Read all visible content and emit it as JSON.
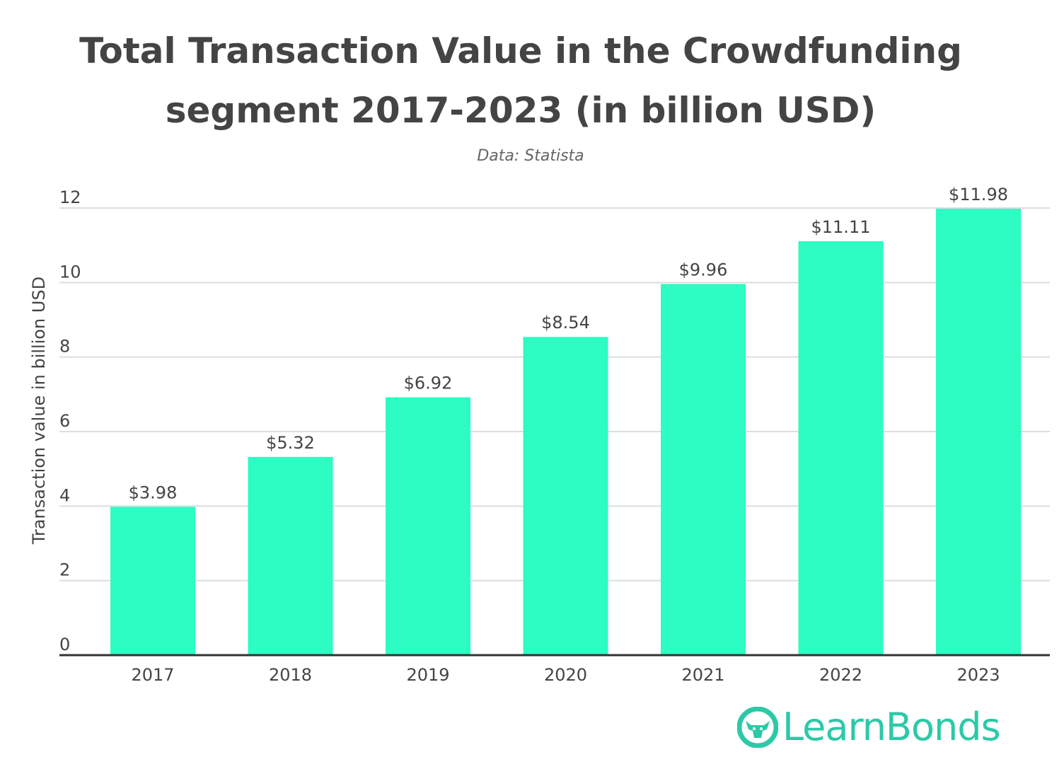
{
  "chart_data": {
    "type": "bar",
    "title_line1": "Total Transaction Value in the Crowdfunding",
    "title_line2": "segment 2017-2023 (in billion USD)",
    "subtitle": "Data: Statista",
    "xlabel": "",
    "ylabel": "Transaction value in billion USD",
    "categories": [
      "2017",
      "2018",
      "2019",
      "2020",
      "2021",
      "2022",
      "2023"
    ],
    "values": [
      3.98,
      5.32,
      6.92,
      8.54,
      9.96,
      11.11,
      11.98
    ],
    "data_labels": [
      "$3.98",
      "$5.32",
      "$6.92",
      "$8.54",
      "$9.96",
      "$11.11",
      "$11.98"
    ],
    "ylim": [
      0,
      12
    ],
    "yticks": [
      0,
      2,
      4,
      6,
      8,
      10,
      12
    ],
    "grid": true,
    "colors": {
      "bar": "#2dfcc3",
      "axis": "#333333",
      "grid": "#dddddd",
      "text": "#444444"
    }
  },
  "branding": {
    "logo_text": "LearnBonds",
    "logo_icon": "learnbonds-bull-icon"
  }
}
